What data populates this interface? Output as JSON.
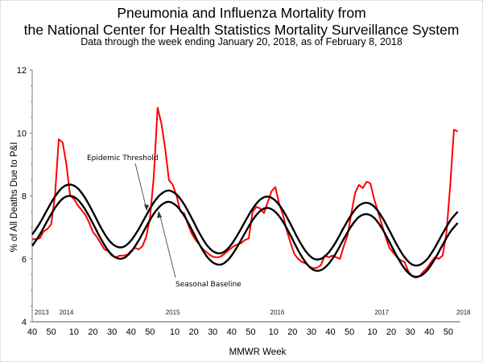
{
  "chart_data": {
    "type": "line",
    "title": "Pneumonia and Influenza Mortality from",
    "title_line2": "the National Center for Health Statistics Mortality Surveillance System",
    "subtitle": "Data through the week ending January 20, 2018, as of February 8, 2018",
    "xlabel": "MMWR Week",
    "ylabel": "% of All Deaths Due to P&I",
    "ylim": [
      4,
      12
    ],
    "yticks": [
      "4",
      "6",
      "8",
      "10",
      "12"
    ],
    "x_start": {
      "year": 2013,
      "week": 40
    },
    "x_end": {
      "year": 2018,
      "week": 3
    },
    "year_week_counts": {
      "2013": 52,
      "2014": 53,
      "2015": 52,
      "2016": 52,
      "2017": 52
    },
    "xticks": [
      {
        "year": 2013,
        "week": 40,
        "label": "40"
      },
      {
        "year": 2013,
        "week": 50,
        "label": "50"
      },
      {
        "year": 2014,
        "week": 10,
        "label": "10"
      },
      {
        "year": 2014,
        "week": 20,
        "label": "20"
      },
      {
        "year": 2014,
        "week": 30,
        "label": "30"
      },
      {
        "year": 2014,
        "week": 40,
        "label": "40"
      },
      {
        "year": 2014,
        "week": 50,
        "label": "50"
      },
      {
        "year": 2015,
        "week": 10,
        "label": "10"
      },
      {
        "year": 2015,
        "week": 20,
        "label": "20"
      },
      {
        "year": 2015,
        "week": 30,
        "label": "30"
      },
      {
        "year": 2015,
        "week": 40,
        "label": "40"
      },
      {
        "year": 2015,
        "week": 50,
        "label": "50"
      },
      {
        "year": 2016,
        "week": 10,
        "label": "10"
      },
      {
        "year": 2016,
        "week": 20,
        "label": "20"
      },
      {
        "year": 2016,
        "week": 30,
        "label": "30"
      },
      {
        "year": 2016,
        "week": 40,
        "label": "40"
      },
      {
        "year": 2016,
        "week": 50,
        "label": "50"
      },
      {
        "year": 2017,
        "week": 10,
        "label": "10"
      },
      {
        "year": 2017,
        "week": 20,
        "label": "20"
      },
      {
        "year": 2017,
        "week": 30,
        "label": "30"
      },
      {
        "year": 2017,
        "week": 40,
        "label": "40"
      },
      {
        "year": 2017,
        "week": 50,
        "label": "50"
      }
    ],
    "year_labels": [
      {
        "year": 2013,
        "week": 45,
        "label": "2013"
      },
      {
        "year": 2014,
        "week": 6,
        "label": "2014"
      },
      {
        "year": 2015,
        "week": 9,
        "label": "2015"
      },
      {
        "year": 2016,
        "week": 12,
        "label": "2016"
      },
      {
        "year": 2017,
        "week": 15,
        "label": "2017"
      },
      {
        "year": 2018,
        "week": 6,
        "label": "2018"
      }
    ],
    "annotations": {
      "threshold": "Epidemic Threshold",
      "baseline": "Seasonal Baseline"
    },
    "grid": false,
    "series": [
      {
        "id": "observed",
        "color": "#ff0000",
        "interval_weeks": 2,
        "values": [
          6.62,
          6.63,
          6.65,
          6.87,
          6.95,
          7.1,
          8.0,
          9.8,
          9.7,
          9.0,
          8.0,
          7.9,
          7.7,
          7.55,
          7.4,
          7.15,
          6.85,
          6.7,
          6.5,
          6.3,
          6.25,
          6.1,
          6.05,
          6.1,
          6.1,
          6.13,
          6.25,
          6.35,
          6.3,
          6.4,
          6.7,
          7.3,
          8.6,
          10.8,
          10.3,
          9.5,
          8.5,
          8.35,
          8.0,
          7.5,
          7.45,
          7.1,
          6.8,
          6.6,
          6.45,
          6.3,
          6.2,
          6.1,
          6.05,
          6.05,
          6.1,
          6.2,
          6.3,
          6.4,
          6.45,
          6.5,
          6.6,
          6.65,
          7.5,
          7.65,
          7.6,
          7.45,
          7.8,
          8.15,
          8.28,
          7.75,
          7.4,
          6.9,
          6.5,
          6.15,
          6.0,
          5.9,
          5.85,
          5.75,
          5.7,
          5.72,
          5.8,
          6.1,
          6.05,
          6.1,
          6.05,
          6.0,
          6.4,
          6.75,
          7.45,
          8.1,
          8.35,
          8.25,
          8.45,
          8.4,
          7.9,
          7.5,
          7.1,
          6.7,
          6.35,
          6.2,
          6.05,
          5.95,
          5.9,
          5.6,
          5.45,
          5.4,
          5.45,
          5.6,
          5.72,
          5.9,
          6.05,
          6.0,
          6.1,
          6.8,
          8.3,
          10.1,
          10.05
        ]
      },
      {
        "id": "threshold",
        "name": "Epidemic Threshold",
        "color": "#000000",
        "interval_weeks": 4,
        "values": [
          6.77,
          7.13,
          7.57,
          7.98,
          8.27,
          8.36,
          8.24,
          7.92,
          7.48,
          7.01,
          6.62,
          6.4,
          6.38,
          6.58,
          6.94,
          7.38,
          7.79,
          8.07,
          8.17,
          8.04,
          7.73,
          7.29,
          6.82,
          6.43,
          6.21,
          6.19,
          6.39,
          6.75,
          7.18,
          7.59,
          7.88,
          7.98,
          7.85,
          7.54,
          7.1,
          6.63,
          6.24,
          6.01,
          6.0,
          6.2,
          6.55,
          6.99,
          7.4,
          7.69,
          7.78,
          7.66,
          7.34,
          6.9,
          6.44,
          6.05,
          5.82,
          5.81,
          6.0,
          6.36,
          6.8,
          7.21,
          7.5
        ]
      },
      {
        "id": "baseline",
        "name": "Seasonal Baseline",
        "color": "#000000",
        "interval_weeks": 4,
        "values": [
          6.41,
          6.77,
          7.21,
          7.62,
          7.91,
          8.0,
          7.88,
          7.56,
          7.12,
          6.65,
          6.26,
          6.04,
          6.02,
          6.22,
          6.58,
          7.02,
          7.43,
          7.71,
          7.81,
          7.68,
          7.37,
          6.93,
          6.46,
          6.07,
          5.85,
          5.83,
          6.03,
          6.39,
          6.82,
          7.23,
          7.52,
          7.62,
          7.49,
          7.18,
          6.74,
          6.27,
          5.88,
          5.65,
          5.64,
          5.84,
          6.19,
          6.63,
          7.04,
          7.33,
          7.42,
          7.3,
          6.98,
          6.54,
          6.08,
          5.69,
          5.46,
          5.45,
          5.64,
          6.0,
          6.44,
          6.85,
          7.14
        ]
      }
    ]
  }
}
